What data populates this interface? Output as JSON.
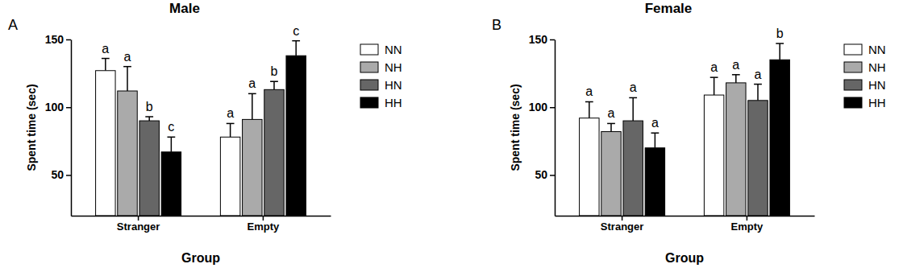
{
  "chart_data": [
    {
      "type": "bar",
      "panel": "A",
      "title": "Male",
      "x_label": "Group",
      "y_label": "Spent time (sec)",
      "categories": [
        "Stranger",
        "Empty"
      ],
      "ylim": [
        20,
        150
      ],
      "yticks": [
        50,
        100,
        150
      ],
      "legend": "right",
      "series": [
        {
          "name": "NN",
          "color": "#ffffff",
          "values": [
            127,
            78
          ],
          "errors": [
            9,
            10
          ],
          "annotations": [
            "a",
            "a"
          ]
        },
        {
          "name": "NH",
          "color": "#aaaaaa",
          "values": [
            112,
            91
          ],
          "errors": [
            18,
            19
          ],
          "annotations": [
            "a",
            "a"
          ]
        },
        {
          "name": "HN",
          "color": "#666666",
          "values": [
            90,
            113
          ],
          "errors": [
            3,
            6
          ],
          "annotations": [
            "b",
            "b"
          ]
        },
        {
          "name": "HH",
          "color": "#000000",
          "values": [
            67,
            138
          ],
          "errors": [
            11,
            11
          ],
          "annotations": [
            "c",
            "c"
          ]
        }
      ]
    },
    {
      "type": "bar",
      "panel": "B",
      "title": "Female",
      "x_label": "Group",
      "y_label": "Spent time (sec)",
      "categories": [
        "Stranger",
        "Empty"
      ],
      "ylim": [
        20,
        150
      ],
      "yticks": [
        50,
        100,
        150
      ],
      "legend": "right",
      "series": [
        {
          "name": "NN",
          "color": "#ffffff",
          "values": [
            92,
            109
          ],
          "errors": [
            12,
            13
          ],
          "annotations": [
            "a",
            "a"
          ]
        },
        {
          "name": "NH",
          "color": "#aaaaaa",
          "values": [
            82,
            118
          ],
          "errors": [
            6,
            6
          ],
          "annotations": [
            "a",
            "a"
          ]
        },
        {
          "name": "HN",
          "color": "#666666",
          "values": [
            90,
            105
          ],
          "errors": [
            17,
            12
          ],
          "annotations": [
            "a",
            "a"
          ]
        },
        {
          "name": "HH",
          "color": "#000000",
          "values": [
            70,
            135
          ],
          "errors": [
            11,
            12
          ],
          "annotations": [
            "a",
            "b"
          ]
        }
      ]
    }
  ]
}
